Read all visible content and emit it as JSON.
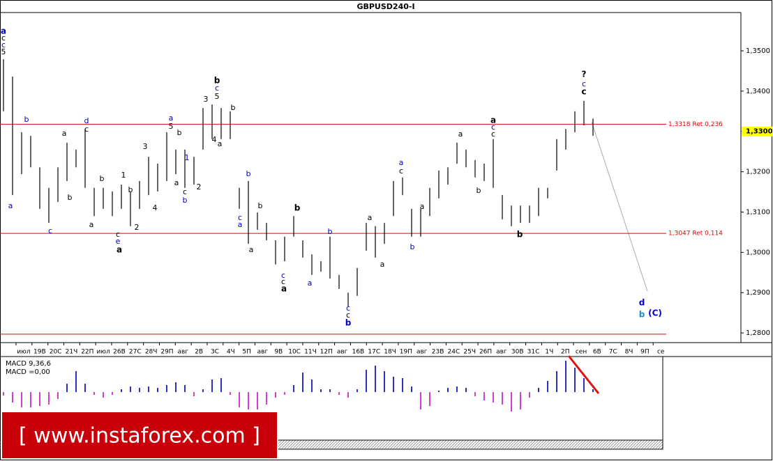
{
  "chart_data": [
    {
      "type": "range_bar",
      "title": "GBPUSD240-I",
      "color": "#000000",
      "high": [
        1.3479,
        1.3436,
        1.3298,
        1.3289,
        1.3211,
        1.316,
        1.3211,
        1.3272,
        1.3255,
        1.3306,
        1.316,
        1.316,
        1.3151,
        1.3168,
        1.3151,
        1.3177,
        1.3237,
        1.322,
        1.3298,
        1.3255,
        1.3255,
        1.3237,
        1.3358,
        1.3367,
        1.3358,
        1.335,
        1.316,
        1.3177,
        1.3099,
        1.3073,
        1.303,
        1.3039,
        1.309,
        1.303,
        1.2995,
        1.2978,
        1.3039,
        1.2944,
        1.29,
        1.2961,
        1.3073,
        1.3065,
        1.3073,
        1.3177,
        1.3186,
        1.3108,
        1.3108,
        1.316,
        1.3203,
        1.3211,
        1.3272,
        1.3255,
        1.3229,
        1.322,
        1.3281,
        1.3142,
        1.3116,
        1.3116,
        1.3116,
        1.316,
        1.316,
        1.3281,
        1.3306,
        1.335,
        1.3376,
        1.3332
      ],
      "low": [
        1.335,
        1.3142,
        1.3194,
        1.3211,
        1.3108,
        1.3073,
        1.3125,
        1.3177,
        1.3211,
        1.316,
        1.309,
        1.3108,
        1.309,
        1.3108,
        1.3065,
        1.3108,
        1.3142,
        1.3151,
        1.3177,
        1.3194,
        1.316,
        1.3168,
        1.3255,
        1.3281,
        1.3281,
        1.3281,
        1.3108,
        1.3021,
        1.3056,
        1.303,
        1.297,
        1.2978,
        1.3039,
        1.2987,
        1.2944,
        1.2952,
        1.2935,
        1.2909,
        1.2866,
        1.2892,
        1.3004,
        1.2987,
        1.3021,
        1.309,
        1.3142,
        1.3039,
        1.3039,
        1.309,
        1.3134,
        1.3168,
        1.322,
        1.3211,
        1.3186,
        1.3177,
        1.316,
        1.3082,
        1.3065,
        1.3073,
        1.3073,
        1.309,
        1.3134,
        1.3203,
        1.3255,
        1.3298,
        1.3315,
        1.3289
      ],
      "ylim": [
        1.2776,
        1.3595
      ],
      "yticks": [
        {
          "value": 1.28,
          "label": "1,2800"
        },
        {
          "value": 1.29,
          "label": "1,2900"
        },
        {
          "value": 1.3,
          "label": "1,3000"
        },
        {
          "value": 1.31,
          "label": "1,3100"
        },
        {
          "value": 1.32,
          "label": "1,3200"
        },
        {
          "value": 1.33,
          "label": "1,3300"
        },
        {
          "value": 1.34,
          "label": "1,3400"
        },
        {
          "value": 1.35,
          "label": "1,3500"
        }
      ],
      "levels": [
        {
          "value": 1.3318,
          "label": "1,3318 Ret 0,236",
          "color": "#e00000"
        },
        {
          "value": 1.3047,
          "label": "1,3047 Ret 0,114",
          "color": "#e00000"
        },
        {
          "value": 1.2797,
          "color": "#e00000"
        }
      ],
      "last_price": {
        "value": 1.33,
        "label": "1,3300"
      },
      "xlabels": [
        "июл",
        "19В",
        "20С",
        "21Ч",
        "22П",
        "июл",
        "26В",
        "27С",
        "28Ч",
        "29П",
        "авг",
        "2В",
        "3С",
        "4Ч",
        "5П",
        "авг",
        "9В",
        "10С",
        "11Ч",
        "12П",
        "авг",
        "16В",
        "17С",
        "18Ч",
        "19П",
        "авг",
        "23В",
        "24С",
        "25Ч",
        "26П",
        "авг",
        "30В",
        "31С",
        "1Ч",
        "2П",
        "сен",
        "6В",
        "7С",
        "8Ч",
        "9П",
        "се"
      ],
      "annotations": [
        "a",
        "c",
        "c",
        "5",
        "b",
        "a",
        "c",
        "a",
        "b",
        "d",
        "c",
        "b",
        "a",
        "c",
        "e",
        "a",
        "1",
        "b",
        "2",
        "4",
        "3",
        "a",
        "5",
        "b",
        "a",
        "c",
        "b",
        "1",
        "2",
        "3",
        "4",
        "a",
        "b",
        "c",
        "5",
        "b",
        "b",
        "c",
        "a",
        "b",
        "a",
        "c",
        "c",
        "a",
        "b",
        "a",
        "b",
        "c",
        "c",
        "b",
        "a",
        "a",
        "a",
        "c",
        "b",
        "a",
        "a",
        "b",
        "a",
        "c",
        "c",
        "b",
        "?",
        "c",
        "c",
        "d",
        "b",
        "(C)"
      ]
    },
    {
      "type": "bar",
      "title": "MACD 9,36,6",
      "value_text": "MACD =0,00",
      "positive_color": "#3030c0",
      "negative_color": "#d040d0",
      "ylim": [
        -0.0029,
        0.0051
      ],
      "values": [
        -0.0005,
        -0.0015,
        -0.0022,
        -0.0022,
        -0.002,
        -0.0018,
        -0.001,
        0.0012,
        0.003,
        0.0012,
        -0.0004,
        -0.0008,
        -0.0004,
        0.0004,
        0.0008,
        0.0006,
        0.0008,
        0.0006,
        0.001,
        0.0014,
        0.001,
        -0.0006,
        0.0004,
        0.0018,
        0.002,
        -0.0004,
        -0.0022,
        -0.0025,
        -0.0025,
        -0.0018,
        -0.0008,
        -0.0004,
        0.001,
        0.0028,
        0.0018,
        0.0004,
        0.0004,
        -0.0004,
        -0.0008,
        0.0004,
        0.0032,
        0.0038,
        0.003,
        0.0022,
        0.002,
        0.0008,
        -0.0025,
        -0.002,
        0.0002,
        0.0006,
        0.0008,
        0.0006,
        -0.0006,
        -0.0012,
        -0.0015,
        -0.0018,
        -0.0028,
        -0.0025,
        -0.0008,
        0.0006,
        0.0016,
        0.003,
        0.0045,
        0.0035,
        0.002,
        0.0004
      ]
    }
  ],
  "watermark": "[ www.instaforex.com ]"
}
